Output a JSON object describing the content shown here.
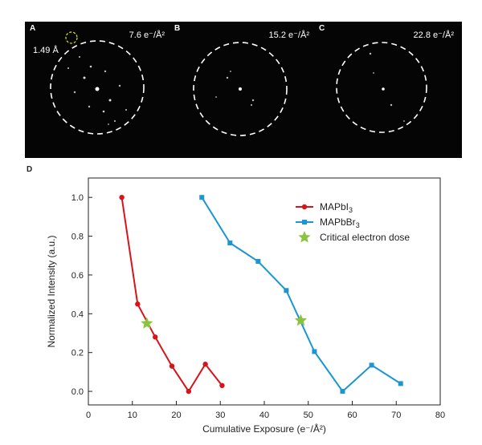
{
  "panels": [
    {
      "label": "A",
      "dose": "7.6 e⁻/Å²",
      "resolution": "1.49 Å"
    },
    {
      "label": "B",
      "dose": "15.2 e⁻/Å²"
    },
    {
      "label": "C",
      "dose": "22.8 e⁻/Å²"
    }
  ],
  "panel_d_label": "D",
  "chart_data": {
    "type": "line",
    "xlabel": "Cumulative Exposure (e⁻/Å²)",
    "ylabel": "Normalized Intensity (a.u.)",
    "xlim": [
      0,
      80
    ],
    "ylim": [
      -0.07,
      1.1
    ],
    "xticks": [
      "0",
      "10",
      "20",
      "30",
      "40",
      "50",
      "60",
      "70",
      "80"
    ],
    "yticks": [
      "0.0",
      "0.2",
      "0.4",
      "0.6",
      "0.8",
      "1.0"
    ],
    "legend_position": "top-right",
    "series": [
      {
        "name": "MAPbI3",
        "color": "#d7141a",
        "marker": "circle",
        "x": [
          7.6,
          11.2,
          15.2,
          19.0,
          22.8,
          26.6,
          30.4
        ],
        "y": [
          1.0,
          0.45,
          0.28,
          0.13,
          0.0,
          0.14,
          0.03
        ]
      },
      {
        "name": "MAPbBr3",
        "color": "#1b96d3",
        "marker": "square",
        "x": [
          25.8,
          32.2,
          38.6,
          45.0,
          51.4,
          57.8,
          64.4,
          71.0
        ],
        "y": [
          1.0,
          0.765,
          0.67,
          0.52,
          0.205,
          0.0,
          0.135,
          0.04
        ]
      }
    ],
    "critical_points": {
      "name": "Critical electron dose",
      "color": "#8ac43f",
      "marker": "star",
      "x": [
        13.3,
        48.3
      ],
      "y": [
        0.35,
        0.365
      ]
    }
  }
}
